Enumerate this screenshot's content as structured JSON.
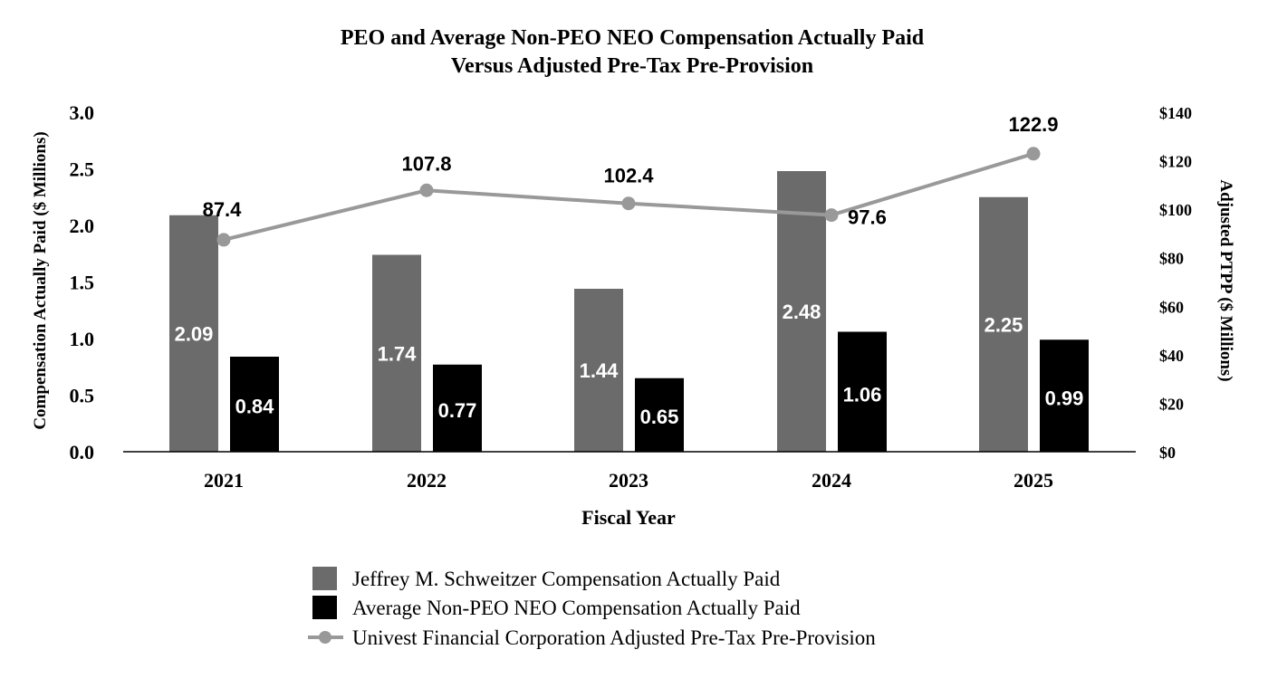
{
  "chart_data": {
    "type": "bar",
    "title": [
      "PEO and Average Non-PEO NEO Compensation Actually Paid",
      "Versus Adjusted Pre-Tax Pre-Provision"
    ],
    "xlabel": "Fiscal Year",
    "ylabel": "Compensation Actually Paid ($ Millions)",
    "y2label": "Adjusted PTPP ($ Millions)",
    "categories": [
      "2021",
      "2022",
      "2023",
      "2024",
      "2025"
    ],
    "ylim": [
      0,
      3.0
    ],
    "yticks": [
      "0.0",
      "0.5",
      "1.0",
      "1.5",
      "2.0",
      "2.5",
      "3.0"
    ],
    "y2lim": [
      0,
      140
    ],
    "y2ticks": [
      "$0",
      "$20",
      "$40",
      "$60",
      "$80",
      "$100",
      "$120",
      "$140"
    ],
    "series": [
      {
        "name": "Jeffrey M. Schweitzer Compensation Actually Paid",
        "kind": "bar",
        "axis": "left",
        "color": "#6b6b6b",
        "values": [
          2.09,
          1.74,
          1.44,
          2.48,
          2.25
        ],
        "labels": [
          "2.09",
          "1.74",
          "1.44",
          "2.48",
          "2.25"
        ]
      },
      {
        "name": "Average Non-PEO NEO Compensation Actually Paid",
        "kind": "bar",
        "axis": "left",
        "color": "#000000",
        "values": [
          0.84,
          0.77,
          0.65,
          1.06,
          0.99
        ],
        "labels": [
          "0.84",
          "0.77",
          "0.65",
          "1.06",
          "0.99"
        ]
      },
      {
        "name": "Univest Financial Corporation Adjusted Pre-Tax Pre-Provision",
        "kind": "line",
        "axis": "right",
        "color": "#999999",
        "values": [
          87.4,
          107.8,
          102.4,
          97.6,
          122.9
        ],
        "labels": [
          "87.4",
          "107.8",
          "102.4",
          "97.6",
          "122.9"
        ]
      }
    ],
    "legend_position": "bottom"
  }
}
